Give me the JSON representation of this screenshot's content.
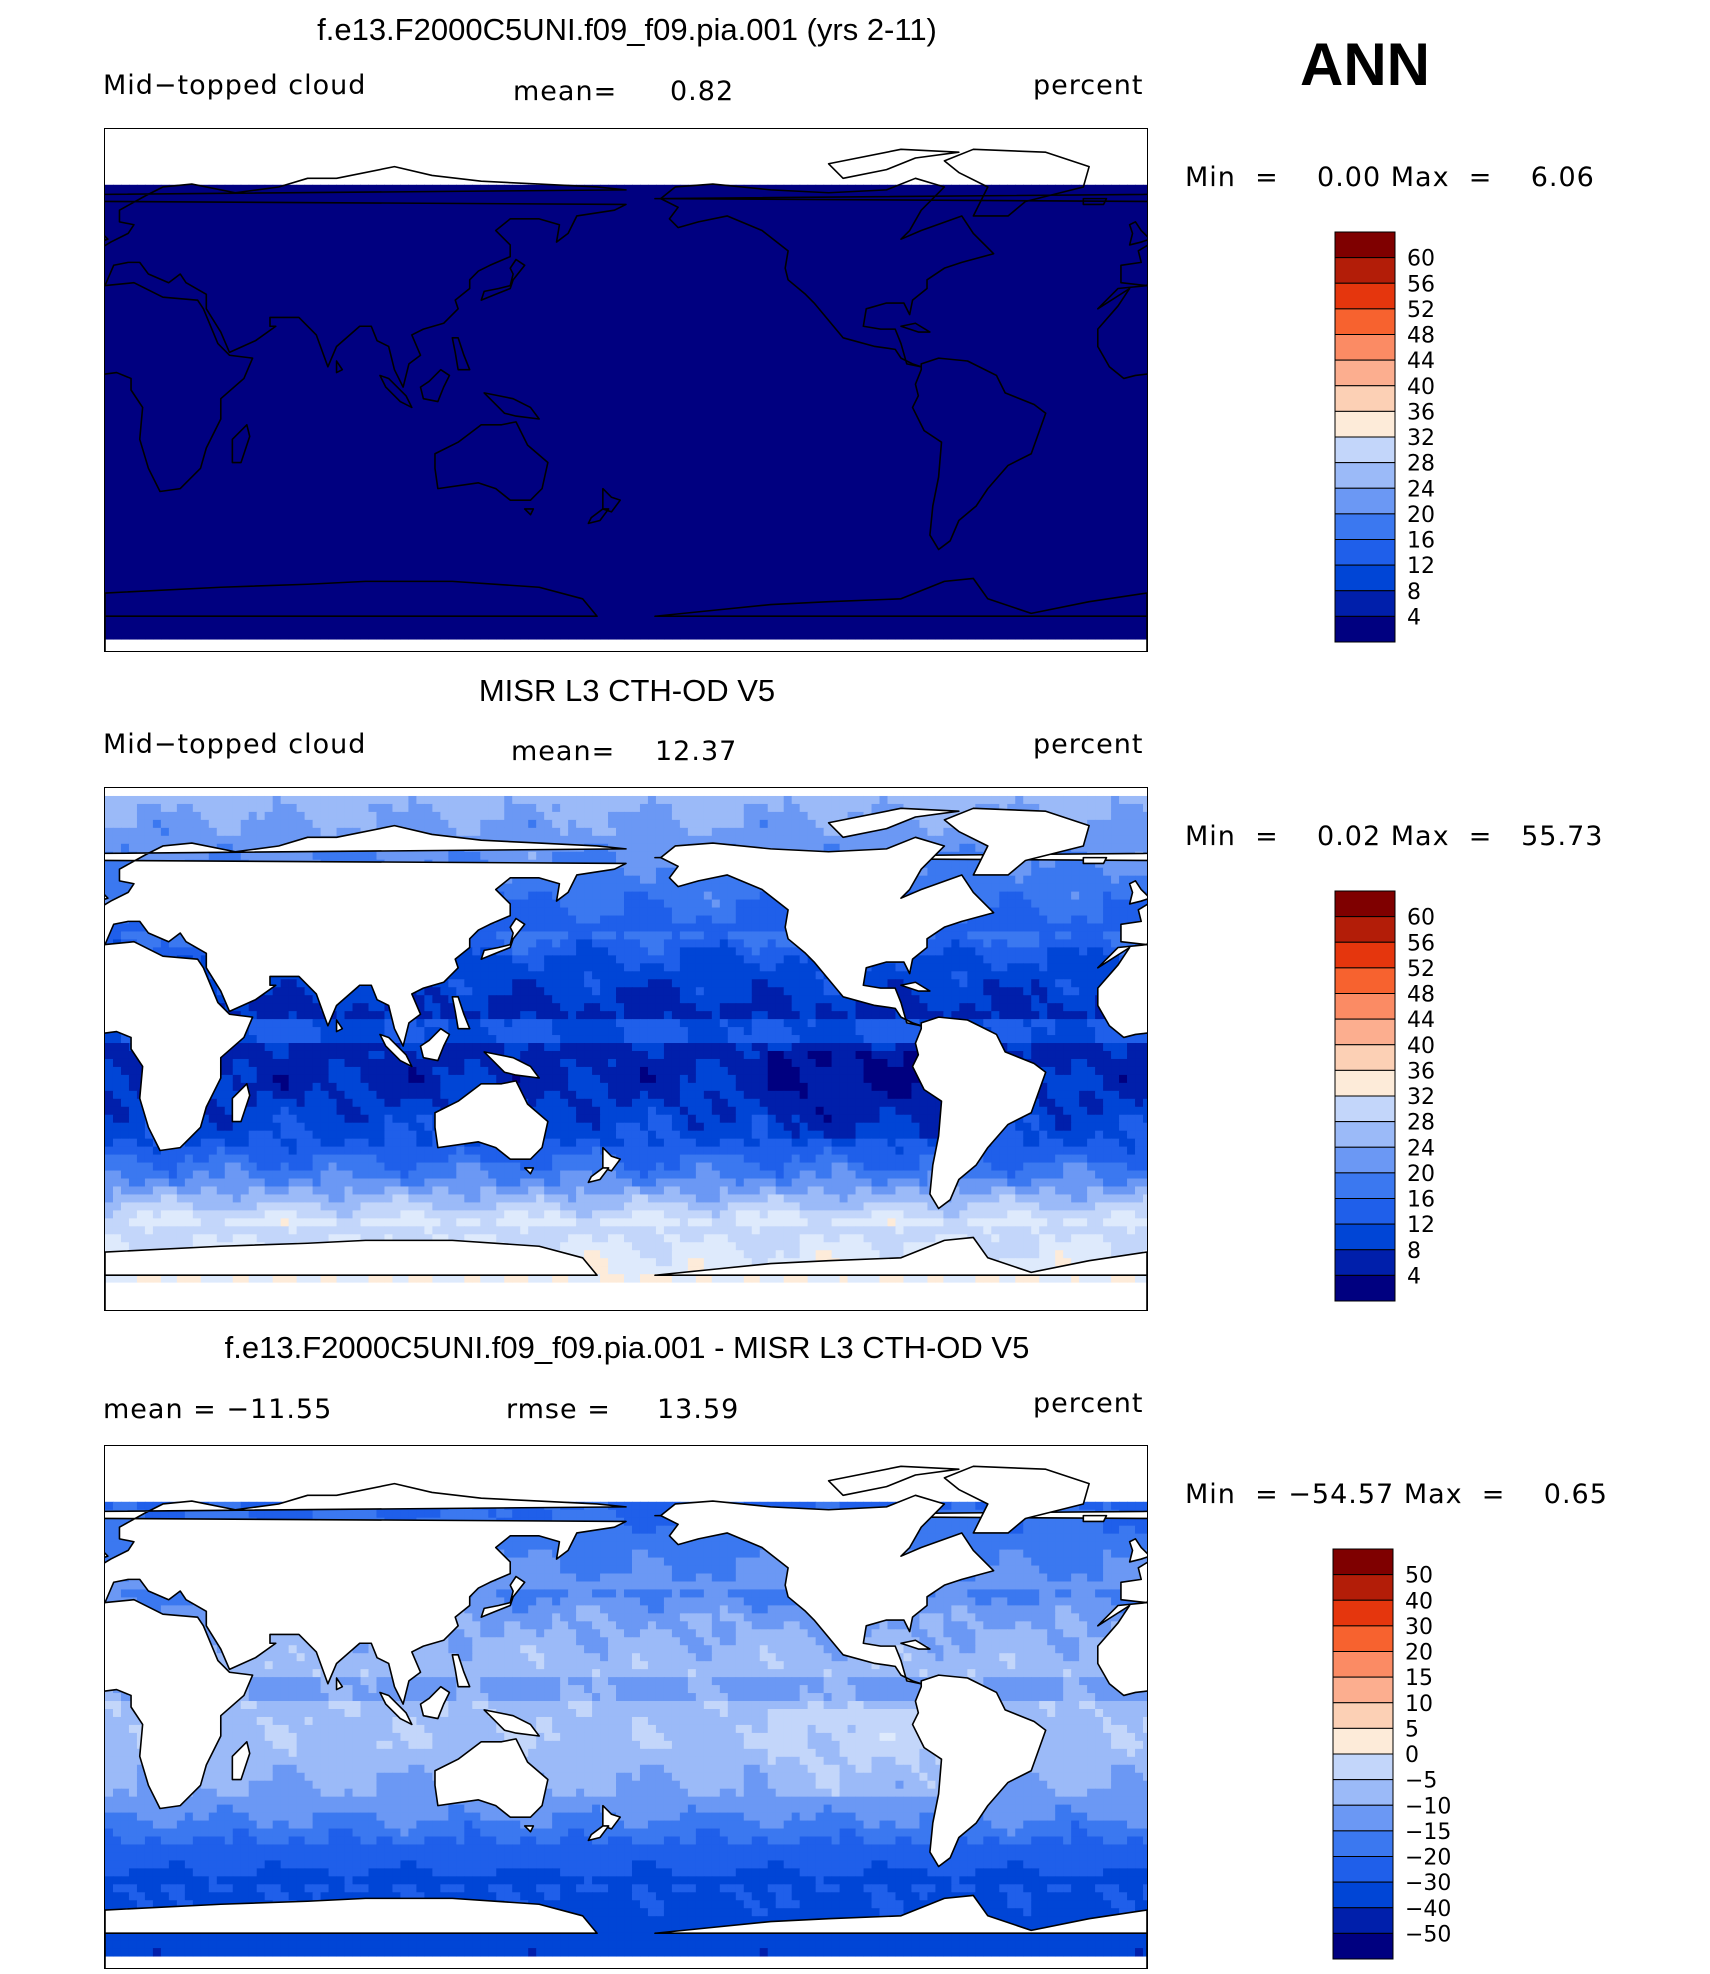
{
  "season": "ANN",
  "colors": {
    "seq": [
      "#000080",
      "#001fab",
      "#0045d6",
      "#1f5fea",
      "#3b78f0",
      "#6b98f4",
      "#9bbaf8",
      "#c3d6fa",
      "#deeafc",
      "#fdebd9",
      "#fcd0b5",
      "#fcae8f",
      "#fb8b64",
      "#f7622f",
      "#e5360d",
      "#b31d08",
      "#7f0000"
    ],
    "div": [
      "#000080",
      "#001fab",
      "#0045d6",
      "#1f5fea",
      "#3b78f0",
      "#6b98f4",
      "#9bbaf8",
      "#c3d6fa",
      "#deeafc",
      "#fdebd9",
      "#fcd0b5",
      "#fcae8f",
      "#fb8b64",
      "#f7622f",
      "#e5360d",
      "#b31d08",
      "#7f0000"
    ],
    "land": "#ffffff",
    "coast": "#000000"
  },
  "panels": [
    {
      "title": "f.e13.F2000C5UNI.f09_f09.pia.001 (yrs 2-11)",
      "left": "Mid−topped  cloud",
      "center_label": "mean=",
      "center_value": "0.82",
      "right": "percent",
      "min_label": "Min  =",
      "min_value": "0.00",
      "max_label": "Max  =",
      "max_value": "6.06",
      "field": "model",
      "colorbar": [
        "60",
        "56",
        "52",
        "48",
        "44",
        "40",
        "36",
        "32",
        "28",
        "24",
        "20",
        "16",
        "12",
        "8",
        "4"
      ]
    },
    {
      "title": "MISR L3 CTH-OD V5",
      "left": "Mid−topped  cloud",
      "center_label": "mean=",
      "center_value": "12.37",
      "right": "percent",
      "min_label": "Min  =",
      "min_value": "0.02",
      "max_label": "Max  =",
      "max_value": "55.73",
      "field": "obs",
      "colorbar": [
        "60",
        "56",
        "52",
        "48",
        "44",
        "40",
        "36",
        "32",
        "28",
        "24",
        "20",
        "16",
        "12",
        "8",
        "4"
      ]
    },
    {
      "title": "f.e13.F2000C5UNI.f09_f09.pia.001 - MISR L3 CTH-OD V5",
      "left": "mean  =  −11.55",
      "center_label": "rmse  =",
      "center_value": "13.59",
      "right": "percent",
      "min_label": "Min  =",
      "min_value": "−54.57",
      "max_label": "Max  =",
      "max_value": "0.65",
      "field": "diff",
      "colorbar": [
        "50",
        "40",
        "30",
        "20",
        "15",
        "10",
        "5",
        "0",
        "−5",
        "−10",
        "−15",
        "−20",
        "−30",
        "−40",
        "−50"
      ]
    }
  ]
}
